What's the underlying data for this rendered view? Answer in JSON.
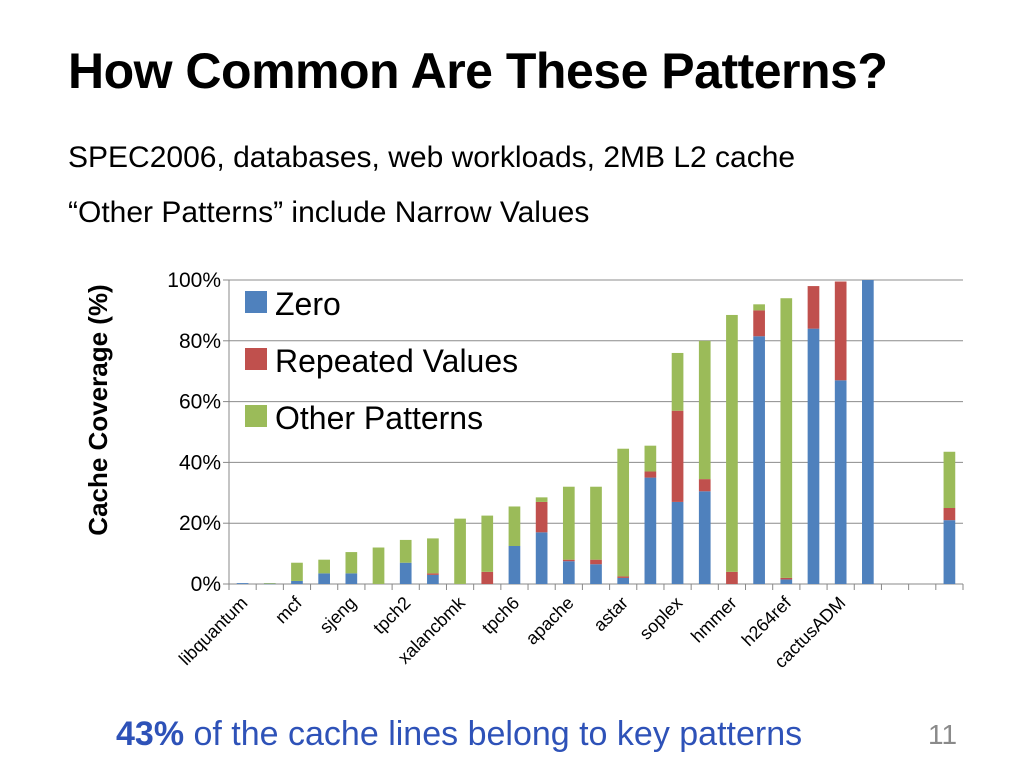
{
  "slide": {
    "title": "How Common Are These Patterns?",
    "bullets": [
      "SPEC2006, databases, web workloads, 2MB L2 cache",
      "“Other Patterns” include Narrow Values"
    ],
    "footer_highlight": "43%",
    "footer_rest": " of the cache lines belong to key patterns",
    "page_number": "11"
  },
  "chart_data": {
    "type": "bar",
    "stacked": true,
    "ylabel": "Cache Coverage (%)",
    "ylim": [
      0,
      100
    ],
    "yticks": [
      "0%",
      "20%",
      "40%",
      "60%",
      "80%",
      "100%"
    ],
    "grid": true,
    "legend_position": "top-left",
    "categories": [
      "libquantum",
      "",
      "mcf",
      "",
      "sjeng",
      "",
      "tpch2",
      "",
      "xalancbmk",
      "",
      "tpch6",
      "",
      "apache",
      "",
      "astar",
      "",
      "soplex",
      "",
      "hmmer",
      "",
      "h264ref",
      "",
      "cactusADM",
      "",
      "",
      "",
      ""
    ],
    "series": [
      {
        "name": "Zero",
        "color": "#4f81bd",
        "values": [
          0.3,
          0.1,
          1,
          3.5,
          3.5,
          0,
          7,
          3,
          0,
          0,
          12.5,
          17,
          7.5,
          6.5,
          2,
          35,
          27,
          30.5,
          0,
          81.5,
          1.5,
          84,
          67,
          100,
          0,
          0,
          21
        ]
      },
      {
        "name": "Repeated Values",
        "color": "#c0504d",
        "values": [
          0,
          0,
          0,
          0,
          0,
          0,
          0,
          0.5,
          0,
          4,
          0,
          10,
          0.5,
          1.5,
          0.5,
          2,
          30,
          4,
          4,
          8.5,
          0.5,
          14,
          32.5,
          0,
          0,
          0,
          4
        ]
      },
      {
        "name": "Other Patterns",
        "color": "#9bbb59",
        "values": [
          0,
          0.2,
          6,
          4.5,
          7,
          12,
          7.5,
          11.5,
          21.5,
          18.5,
          13,
          1.5,
          24,
          24,
          42,
          8.5,
          19,
          45.5,
          84.5,
          2,
          92,
          0,
          0,
          0,
          0,
          0,
          18.5
        ]
      }
    ]
  }
}
